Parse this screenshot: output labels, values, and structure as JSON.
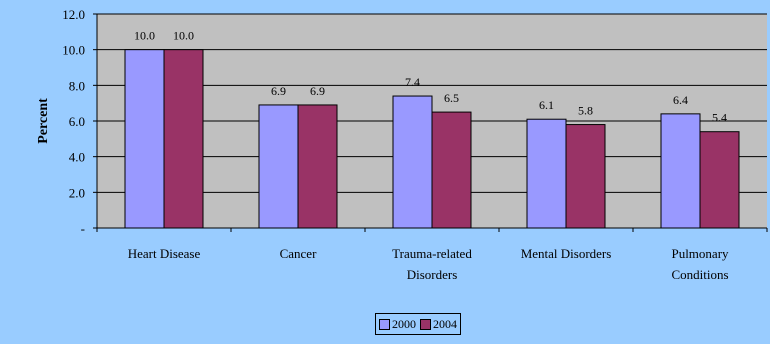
{
  "chart_data": {
    "type": "bar",
    "title": "",
    "xlabel": "",
    "ylabel": "Percent",
    "ylim": [
      0,
      12
    ],
    "yticks": [
      "-",
      "2.0",
      "4.0",
      "6.0",
      "8.0",
      "10.0",
      "12.0"
    ],
    "grid": true,
    "legend_position": "bottom",
    "categories": [
      [
        "Heart Disease"
      ],
      [
        "Cancer"
      ],
      [
        "Trauma-related",
        "Disorders"
      ],
      [
        "Mental Disorders"
      ],
      [
        "Pulmonary",
        "Conditions"
      ]
    ],
    "series": [
      {
        "name": "2000",
        "color": "#9999ff",
        "values": [
          10.0,
          6.9,
          7.4,
          6.1,
          6.4
        ],
        "labels": [
          "10.0",
          "6.9",
          "7.4",
          "6.1",
          "6.4"
        ]
      },
      {
        "name": "2004",
        "color": "#993366",
        "values": [
          10.0,
          6.9,
          6.5,
          5.8,
          5.4
        ],
        "labels": [
          "10.0",
          "6.9",
          "6.5",
          "5.8",
          "5.4"
        ]
      }
    ],
    "colors": {
      "background": "#99ccff",
      "plot_area": "#c0c0c0"
    }
  }
}
